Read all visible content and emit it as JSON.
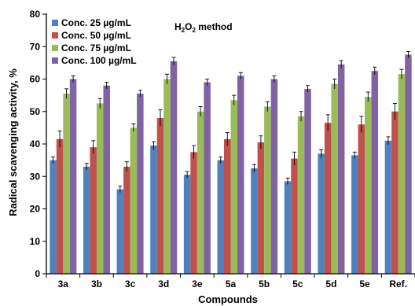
{
  "chart_data": {
    "type": "bar",
    "annotation": {
      "prefix": "H",
      "sub": "2",
      "mid": "O",
      "sub2": "2",
      "suffix": " method"
    },
    "xlabel": "Compounds",
    "ylabel": "Radical scavenging activity, %",
    "ylim": [
      0,
      80
    ],
    "yticks": [
      0,
      10,
      20,
      30,
      40,
      50,
      60,
      70,
      80
    ],
    "grid": false,
    "legend_position": "top-left",
    "categories": [
      "3a",
      "3b",
      "3c",
      "3d",
      "3e",
      "5a",
      "5b",
      "5c",
      "5d",
      "5e",
      "Ref."
    ],
    "series": [
      {
        "name": "Conc. 25 µg/mL",
        "color": "#4f81bd",
        "values": [
          35.0,
          33.0,
          26.0,
          39.5,
          30.5,
          35.0,
          32.5,
          28.5,
          37.0,
          36.5,
          41.0
        ],
        "errors": [
          1.0,
          1.0,
          1.0,
          1.2,
          1.0,
          1.0,
          1.2,
          1.0,
          1.2,
          1.0,
          1.2
        ]
      },
      {
        "name": "Conc. 50 µg/mL",
        "color": "#c0504d",
        "values": [
          41.5,
          39.0,
          33.0,
          48.0,
          37.5,
          41.5,
          40.5,
          35.5,
          46.5,
          46.0,
          50.0
        ],
        "errors": [
          2.5,
          2.0,
          1.5,
          2.5,
          2.0,
          2.0,
          2.0,
          2.0,
          2.5,
          2.5,
          2.5
        ]
      },
      {
        "name": "Conc. 75 µg/mL",
        "color": "#9bbb59",
        "values": [
          55.5,
          52.5,
          45.0,
          60.0,
          50.0,
          53.5,
          51.5,
          48.5,
          58.5,
          54.5,
          61.5
        ],
        "errors": [
          1.5,
          1.5,
          1.2,
          1.5,
          1.5,
          1.5,
          1.5,
          1.5,
          1.5,
          1.5,
          1.5
        ]
      },
      {
        "name": "Conc. 100 µg/mL",
        "color": "#8064a2",
        "values": [
          60.0,
          58.0,
          55.5,
          65.5,
          59.0,
          61.0,
          60.0,
          57.0,
          64.5,
          62.5,
          67.5
        ],
        "errors": [
          1.0,
          1.0,
          1.0,
          1.2,
          1.0,
          1.0,
          1.0,
          1.0,
          1.2,
          1.2,
          1.0
        ]
      }
    ]
  }
}
